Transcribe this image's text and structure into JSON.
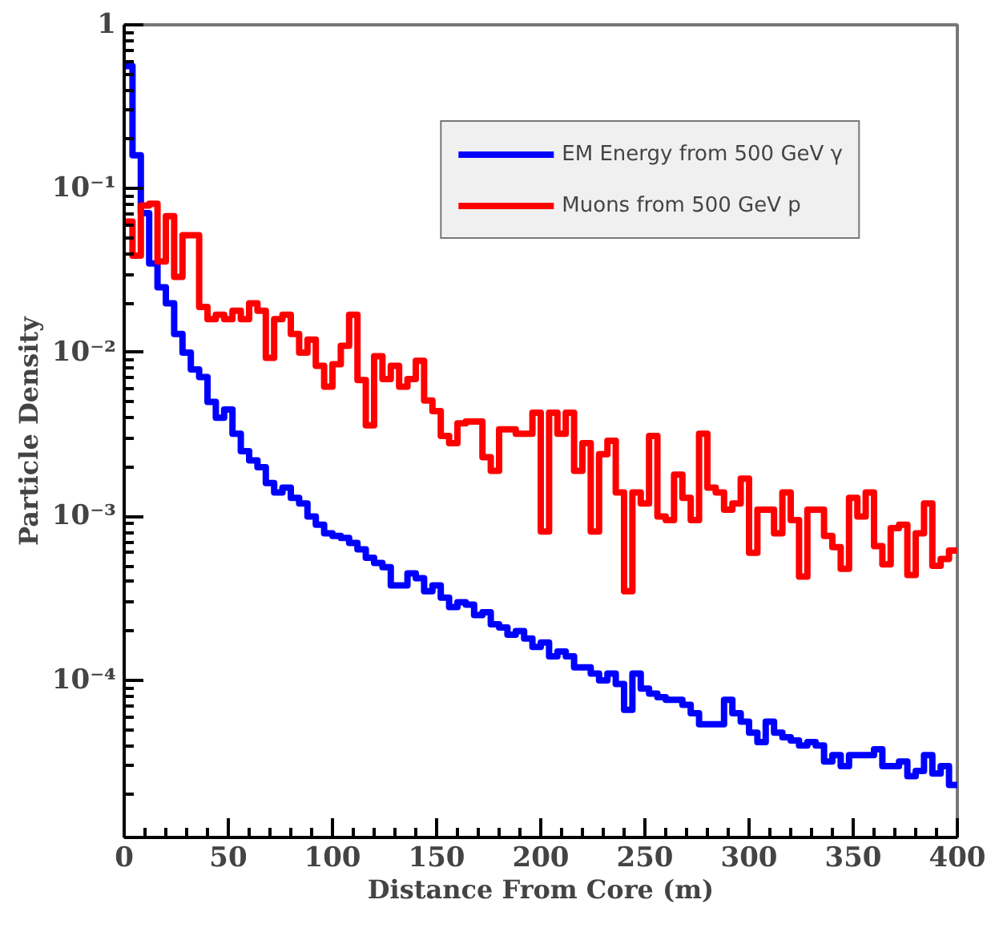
{
  "chart_data": {
    "type": "histogram",
    "xlabel": "Distance From Core (m)",
    "ylabel": "Particle Density",
    "bins": [
      0,
      4,
      8,
      12,
      16,
      20,
      24,
      28,
      32,
      36,
      40,
      44,
      48,
      52,
      56,
      60,
      64,
      68,
      72,
      76,
      80,
      84,
      88,
      92,
      96,
      100,
      104,
      108,
      112,
      116,
      120,
      124,
      128,
      132,
      136,
      140,
      144,
      148,
      152,
      156,
      160,
      164,
      168,
      172,
      176,
      180,
      184,
      188,
      192,
      196,
      200,
      204,
      208,
      212,
      216,
      220,
      224,
      228,
      232,
      236,
      240,
      244,
      248,
      252,
      256,
      260,
      264,
      268,
      272,
      276,
      280,
      284,
      288,
      292,
      296,
      300,
      304,
      308,
      312,
      316,
      320,
      324,
      328,
      332,
      336,
      340,
      344,
      348,
      352,
      356,
      360,
      364,
      368,
      372,
      376,
      380,
      384,
      388,
      392,
      396,
      400
    ],
    "series": [
      {
        "name": "EM Energy from 500 GeV γ",
        "color": "#0000ff",
        "values": [
          0.56,
          0.16,
          0.071,
          0.035,
          0.025,
          0.02,
          0.013,
          0.01,
          0.0079,
          0.0071,
          0.005,
          0.004,
          0.0045,
          0.0032,
          0.0025,
          0.0022,
          0.002,
          0.0016,
          0.0014,
          0.0015,
          0.0013,
          0.0012,
          0.001,
          0.00089,
          0.00079,
          0.00076,
          0.00074,
          0.00069,
          0.00063,
          0.00056,
          0.00052,
          0.00049,
          0.00038,
          0.00038,
          0.00045,
          0.00042,
          0.00035,
          0.00038,
          0.00032,
          0.00028,
          0.0003,
          0.00029,
          0.00025,
          0.00026,
          0.00022,
          0.00021,
          0.00019,
          0.0002,
          0.00018,
          0.00016,
          0.00017,
          0.00014,
          0.00015,
          0.00014,
          0.00012,
          0.00012,
          0.00011,
          0.0001,
          0.00011,
          9.5e-05,
          6.6e-05,
          0.00011,
          8.9e-05,
          8.3e-05,
          7.9e-05,
          7.6e-05,
          7.6e-05,
          7.1e-05,
          6.3e-05,
          5.4e-05,
          5.4e-05,
          5.4e-05,
          7.6e-05,
          6.3e-05,
          5.6e-05,
          4.8e-05,
          4.2e-05,
          5.6e-05,
          4.8e-05,
          4.5e-05,
          4.3e-05,
          4e-05,
          4.2e-05,
          4e-05,
          3.2e-05,
          3.5e-05,
          3e-05,
          3.5e-05,
          3.5e-05,
          3.5e-05,
          3.8e-05,
          3e-05,
          3e-05,
          3.2e-05,
          2.6e-05,
          2.8e-05,
          3.5e-05,
          2.7e-05,
          3e-05,
          2.3e-05
        ]
      },
      {
        "name": "Muons from 500 GeV p",
        "color": "#ff0000",
        "values": [
          0.063,
          0.039,
          0.079,
          0.081,
          0.036,
          0.068,
          0.029,
          0.052,
          0.052,
          0.019,
          0.016,
          0.017,
          0.016,
          0.018,
          0.016,
          0.02,
          0.018,
          0.0093,
          0.016,
          0.017,
          0.013,
          0.01,
          0.012,
          0.0083,
          0.0062,
          0.0085,
          0.011,
          0.017,
          0.0068,
          0.0036,
          0.0095,
          0.0069,
          0.0083,
          0.0062,
          0.0069,
          0.0089,
          0.0051,
          0.0044,
          0.0031,
          0.0028,
          0.0037,
          0.0038,
          0.0038,
          0.0023,
          0.0019,
          0.0034,
          0.0034,
          0.0032,
          0.0032,
          0.0043,
          0.00081,
          0.0043,
          0.0032,
          0.0043,
          0.0019,
          0.0028,
          0.00081,
          0.0024,
          0.0029,
          0.0014,
          0.00035,
          0.0014,
          0.0012,
          0.0031,
          0.001,
          0.00095,
          0.0018,
          0.0013,
          0.00095,
          0.0032,
          0.0015,
          0.0014,
          0.0011,
          0.0012,
          0.0017,
          0.0006,
          0.0011,
          0.0011,
          0.00079,
          0.0014,
          0.00095,
          0.00043,
          0.0011,
          0.0011,
          0.00076,
          0.00065,
          0.00048,
          0.0013,
          0.001,
          0.0014,
          0.00066,
          0.00051,
          0.00085,
          0.00089,
          0.00044,
          0.00079,
          0.0012,
          0.0005,
          0.00055,
          0.00062
        ]
      }
    ],
    "xlim": [
      0,
      400
    ],
    "xticks": [
      0,
      50,
      100,
      150,
      200,
      250,
      300,
      350,
      400
    ],
    "ylim": [
      1.1e-05,
      1
    ],
    "log": true,
    "yticks": [
      {
        "value": 0.0001,
        "label": "10⁻⁴"
      },
      {
        "value": 0.001,
        "label": "10⁻³"
      },
      {
        "value": 0.01,
        "label": "10⁻²"
      },
      {
        "value": 0.1,
        "label": "10⁻¹"
      },
      1
    ],
    "grid": false,
    "legend": "top right",
    "line_style": "solid"
  }
}
